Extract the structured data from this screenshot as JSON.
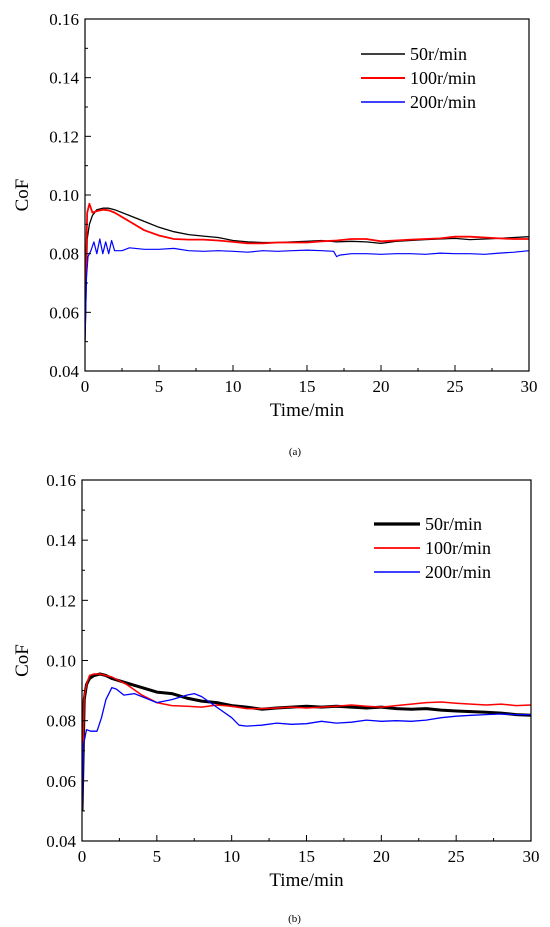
{
  "chart_data": [
    {
      "type": "line",
      "panel_caption": "(a)",
      "xlabel": "Time/min",
      "ylabel": "CoF",
      "xlim": [
        0,
        30
      ],
      "ylim": [
        0.04,
        0.16
      ],
      "x_ticks": [
        0,
        5,
        10,
        15,
        20,
        25,
        30
      ],
      "y_ticks": [
        "0.04",
        "0.06",
        "0.08",
        "0.10",
        "0.12",
        "0.14",
        "0.16"
      ],
      "legend_position": "top-right",
      "series": [
        {
          "name": "50r/min",
          "color": "#000000",
          "x": [
            0,
            0.15,
            0.3,
            0.5,
            0.8,
            1.2,
            1.6,
            2,
            3,
            4,
            5,
            6,
            7,
            8,
            9,
            10,
            11,
            12,
            13,
            14,
            15,
            16,
            17,
            18,
            19,
            20,
            21,
            22,
            23,
            24,
            25,
            26,
            27,
            28,
            29,
            30
          ],
          "y": [
            0.05,
            0.085,
            0.09,
            0.093,
            0.095,
            0.0955,
            0.0955,
            0.095,
            0.093,
            0.091,
            0.089,
            0.0875,
            0.0865,
            0.086,
            0.0855,
            0.0845,
            0.084,
            0.0838,
            0.0838,
            0.084,
            0.0842,
            0.0845,
            0.084,
            0.0842,
            0.084,
            0.0835,
            0.0842,
            0.0845,
            0.0848,
            0.085,
            0.0852,
            0.0848,
            0.085,
            0.0852,
            0.0855,
            0.0858
          ]
        },
        {
          "name": "100r/min",
          "color": "#ff0000",
          "x": [
            0,
            0.15,
            0.3,
            0.5,
            0.8,
            1.2,
            1.6,
            2,
            3,
            4,
            5,
            6,
            7,
            8,
            9,
            10,
            11,
            12,
            13,
            14,
            15,
            16,
            17,
            18,
            19,
            20,
            21,
            22,
            23,
            24,
            25,
            26,
            27,
            28,
            29,
            30
          ],
          "y": [
            0.06,
            0.094,
            0.097,
            0.094,
            0.0945,
            0.095,
            0.0948,
            0.094,
            0.091,
            0.088,
            0.0862,
            0.085,
            0.0848,
            0.0848,
            0.0845,
            0.084,
            0.0835,
            0.0835,
            0.0838,
            0.0838,
            0.0838,
            0.0842,
            0.0845,
            0.085,
            0.085,
            0.0842,
            0.0845,
            0.0848,
            0.085,
            0.0852,
            0.0858,
            0.0858,
            0.0855,
            0.0852,
            0.085,
            0.085
          ]
        },
        {
          "name": "200r/min",
          "color": "#0000ff",
          "x": [
            0,
            0.1,
            0.2,
            0.4,
            0.6,
            0.8,
            1.0,
            1.2,
            1.4,
            1.6,
            1.8,
            2,
            2.5,
            3,
            4,
            5,
            6,
            7,
            8,
            9,
            10,
            11,
            12,
            13,
            14,
            15,
            16,
            16.8,
            17,
            17.2,
            18,
            19,
            20,
            21,
            22,
            23,
            24,
            25,
            26,
            27,
            28,
            29,
            30
          ],
          "y": [
            0.05,
            0.072,
            0.079,
            0.081,
            0.084,
            0.08,
            0.085,
            0.08,
            0.084,
            0.08,
            0.0845,
            0.081,
            0.081,
            0.082,
            0.0815,
            0.0815,
            0.0818,
            0.081,
            0.0808,
            0.081,
            0.0808,
            0.0805,
            0.081,
            0.0808,
            0.081,
            0.0812,
            0.081,
            0.0808,
            0.079,
            0.0795,
            0.08,
            0.08,
            0.0798,
            0.08,
            0.08,
            0.0798,
            0.0802,
            0.08,
            0.08,
            0.0798,
            0.0802,
            0.0805,
            0.081
          ]
        }
      ]
    },
    {
      "type": "line",
      "panel_caption": "(b)",
      "xlabel": "Time/min",
      "ylabel": "CoF",
      "xlim": [
        0,
        30
      ],
      "ylim": [
        0.04,
        0.16
      ],
      "x_ticks": [
        0,
        5,
        10,
        15,
        20,
        25,
        30
      ],
      "y_ticks": [
        "0.04",
        "0.06",
        "0.08",
        "0.10",
        "0.12",
        "0.14",
        "0.16"
      ],
      "legend_position": "top-right",
      "series": [
        {
          "name": "50r/min",
          "color": "#000000",
          "x": [
            0,
            0.15,
            0.3,
            0.5,
            0.8,
            1.2,
            1.6,
            2,
            3,
            4,
            5,
            6,
            7,
            8,
            9,
            10,
            11,
            12,
            13,
            14,
            15,
            16,
            17,
            18,
            19,
            20,
            21,
            22,
            23,
            24,
            25,
            26,
            27,
            28,
            29,
            30
          ],
          "y": [
            0.05,
            0.087,
            0.092,
            0.094,
            0.095,
            0.0955,
            0.095,
            0.094,
            0.0925,
            0.091,
            0.0895,
            0.089,
            0.0875,
            0.0865,
            0.086,
            0.085,
            0.0845,
            0.0838,
            0.0842,
            0.0845,
            0.0848,
            0.0845,
            0.0848,
            0.0845,
            0.0842,
            0.0845,
            0.084,
            0.0838,
            0.084,
            0.0835,
            0.0832,
            0.083,
            0.0828,
            0.0825,
            0.082,
            0.0818
          ]
        },
        {
          "name": "100r/min",
          "color": "#ff0000",
          "x": [
            0,
            0.15,
            0.3,
            0.5,
            0.8,
            1.2,
            1.6,
            2,
            3,
            4,
            5,
            6,
            7,
            8,
            9,
            10,
            11,
            12,
            13,
            14,
            15,
            16,
            17,
            18,
            19,
            20,
            21,
            22,
            23,
            24,
            25,
            26,
            27,
            28,
            29,
            30
          ],
          "y": [
            0.05,
            0.088,
            0.092,
            0.095,
            0.0955,
            0.0955,
            0.095,
            0.0945,
            0.092,
            0.0885,
            0.086,
            0.085,
            0.0848,
            0.0845,
            0.0852,
            0.0848,
            0.084,
            0.084,
            0.0842,
            0.0845,
            0.0842,
            0.0845,
            0.0848,
            0.0852,
            0.0848,
            0.0845,
            0.085,
            0.0855,
            0.086,
            0.0862,
            0.0858,
            0.0855,
            0.0852,
            0.0855,
            0.085,
            0.0852
          ]
        },
        {
          "name": "200r/min",
          "color": "#0000ff",
          "x": [
            0,
            0.1,
            0.3,
            0.6,
            1.0,
            1.3,
            1.6,
            2.0,
            2.3,
            2.8,
            3.5,
            4,
            5,
            6,
            7,
            7.5,
            8,
            9,
            10,
            10.5,
            11,
            12,
            13,
            14,
            15,
            16,
            17,
            18,
            19,
            20,
            21,
            22,
            23,
            24,
            25,
            26,
            27,
            28,
            29,
            30
          ],
          "y": [
            0.05,
            0.072,
            0.077,
            0.0765,
            0.0765,
            0.081,
            0.087,
            0.091,
            0.0905,
            0.0885,
            0.089,
            0.088,
            0.086,
            0.087,
            0.0885,
            0.089,
            0.088,
            0.0845,
            0.081,
            0.0785,
            0.0782,
            0.0785,
            0.0792,
            0.0788,
            0.079,
            0.0798,
            0.0792,
            0.0795,
            0.0802,
            0.0798,
            0.08,
            0.0798,
            0.0802,
            0.081,
            0.0815,
            0.0818,
            0.082,
            0.0822,
            0.082,
            0.082
          ]
        }
      ]
    }
  ]
}
